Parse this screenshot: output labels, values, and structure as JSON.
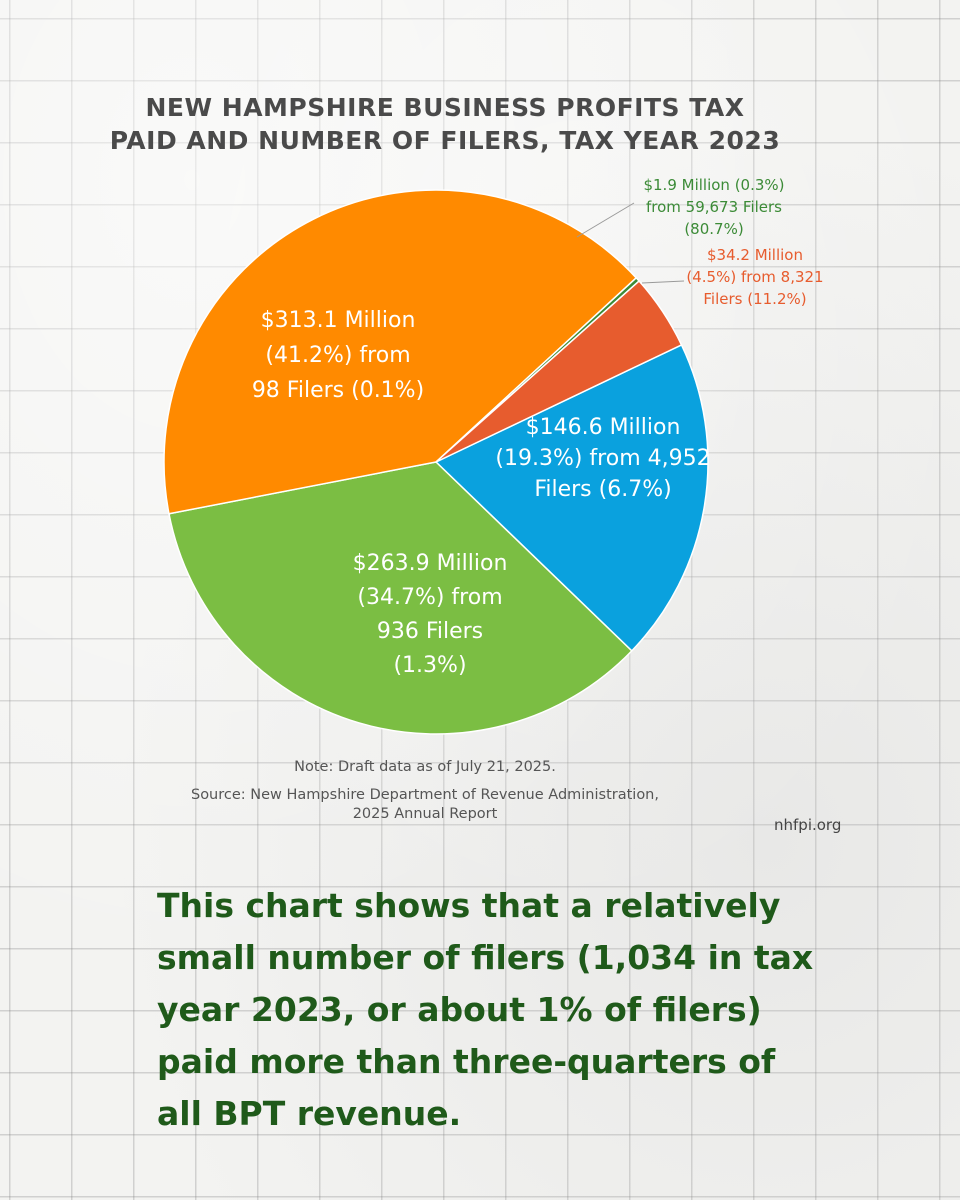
{
  "chart_data": {
    "type": "pie",
    "title": [
      "NEW HAMPSHIRE BUSINESS PROFITS TAX",
      "PAID AND NUMBER OF FILERS, TAX YEAR 2023"
    ],
    "slices": [
      {
        "value": 146.6,
        "percent": 19.3,
        "filers": 4952,
        "filers_percent": 6.7,
        "color": "#0aa1de",
        "label_lines": [
          "$146.6 Million",
          "(19.3%) from 4,952",
          "Filers (6.7%)"
        ]
      },
      {
        "value": 263.9,
        "percent": 34.7,
        "filers": 936,
        "filers_percent": 1.3,
        "color": "#7bbe43",
        "label_lines": [
          "$263.9 Million",
          "(34.7%) from",
          "936 Filers",
          "(1.3%)"
        ]
      },
      {
        "value": 313.1,
        "percent": 41.2,
        "filers": 98,
        "filers_percent": 0.1,
        "color": "#ff8a00",
        "label_lines": [
          "$313.1 Million",
          "(41.2%) from",
          "98 Filers (0.1%)"
        ]
      },
      {
        "value": 1.9,
        "percent": 0.3,
        "filers": 59673,
        "filers_percent": 80.7,
        "color": "#3c8b37",
        "label_color": "#3c8b37",
        "label_lines": [
          "$1.9 Million (0.3%)",
          "from 59,673 Filers",
          "(80.7%)"
        ]
      },
      {
        "value": 34.2,
        "percent": 4.5,
        "filers": 8321,
        "filers_percent": 11.2,
        "color": "#e75c2e",
        "label_color": "#e75c2e",
        "label_lines": [
          "$34.2 Million",
          "(4.5%) from 8,321",
          "Filers (11.2%)"
        ]
      }
    ]
  },
  "notes": {
    "note": "Note: Draft data as of July 21, 2025.",
    "source_line_1": "Source: New Hampshire Department of Revenue Administration,",
    "source_line_2": "2025 Annual Report"
  },
  "site": "nhfpi.org",
  "summary_lines": [
    "This chart shows that a relatively",
    "small number of filers (1,034 in tax",
    "year 2023, or about 1% of filers)",
    "paid more than three-quarters of",
    "all BPT revenue."
  ]
}
